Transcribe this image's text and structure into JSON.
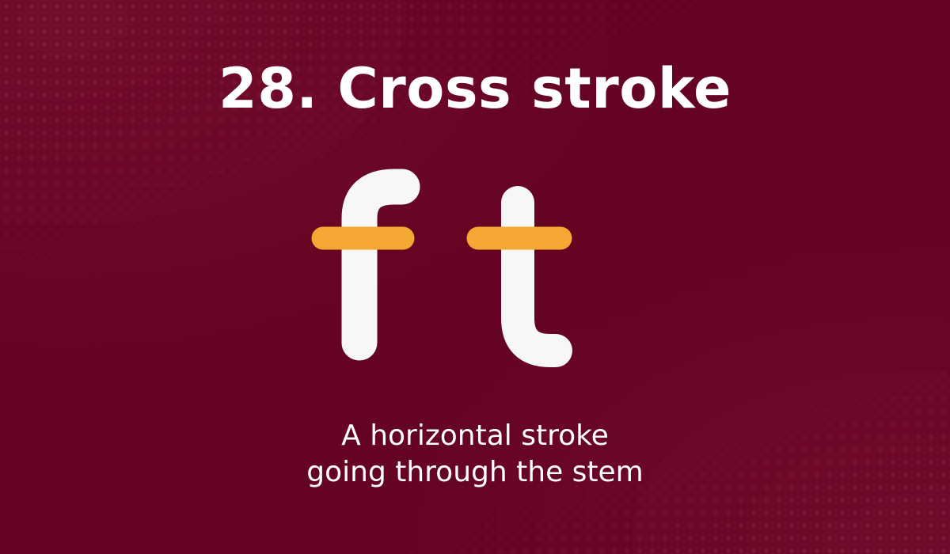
{
  "slide": {
    "title": "28. Cross stroke",
    "caption_line1": "A horizontal stroke",
    "caption_line2": "going through the stem"
  },
  "colors": {
    "background": "#650323",
    "letters": "#f7f7f7",
    "cross_stroke": "#f5a733",
    "text": "#ffffff"
  }
}
